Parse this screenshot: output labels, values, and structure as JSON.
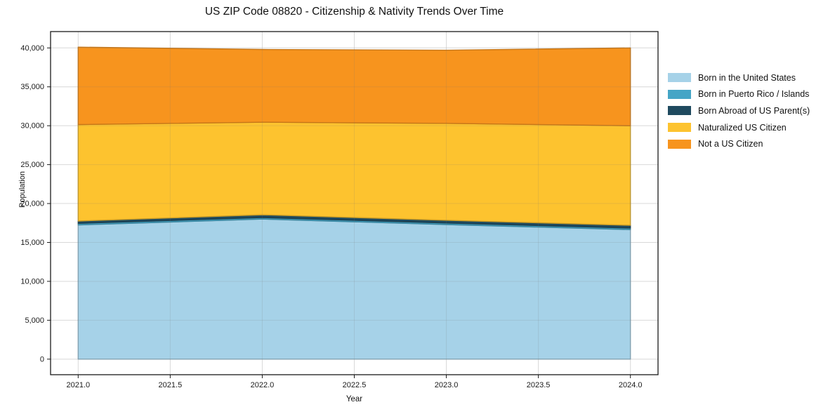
{
  "chart": {
    "title": "US ZIP Code 08820 - Citizenship & Nativity Trends Over Time",
    "xlabel": "Year",
    "ylabel": "Population"
  },
  "chart_data": {
    "type": "area",
    "stacked": true,
    "title": "US ZIP Code 08820 - Citizenship & Nativity Trends Over Time",
    "xlabel": "Year",
    "ylabel": "Population",
    "x": [
      2021,
      2022,
      2023,
      2024
    ],
    "series": [
      {
        "name": "Born in the United States",
        "color": "#a6d2e8",
        "values": [
          17250,
          18000,
          17300,
          16650
        ]
      },
      {
        "name": "Born in Puerto Rico / Islands",
        "color": "#45a5c6",
        "values": [
          200,
          200,
          200,
          200
        ]
      },
      {
        "name": "Born Abroad of US Parent(s)",
        "color": "#1f4a5f",
        "values": [
          300,
          350,
          350,
          350
        ]
      },
      {
        "name": "Naturalized US Citizen",
        "color": "#fdc32f",
        "values": [
          12400,
          11900,
          12450,
          12800
        ]
      },
      {
        "name": "Not a US Citizen",
        "color": "#f7941e",
        "values": [
          9950,
          9350,
          9400,
          10000
        ]
      }
    ],
    "totals": [
      40100,
      39800,
      39700,
      40000
    ],
    "xticks": [
      2021.0,
      2021.5,
      2022.0,
      2022.5,
      2023.0,
      2023.5,
      2024.0
    ],
    "xtick_labels": [
      "2021.0",
      "2021.5",
      "2022.0",
      "2022.5",
      "2023.0",
      "2023.5",
      "2024.0"
    ],
    "yticks": [
      0,
      5000,
      10000,
      15000,
      20000,
      25000,
      30000,
      35000,
      40000
    ],
    "ytick_labels": [
      "0",
      "5,000",
      "10,000",
      "15,000",
      "20,000",
      "25,000",
      "30,000",
      "35,000",
      "40,000"
    ],
    "xlim": [
      2020.85,
      2024.15
    ],
    "ylim": [
      -2000,
      42100
    ],
    "grid": true,
    "legend_position": "right-outside"
  }
}
